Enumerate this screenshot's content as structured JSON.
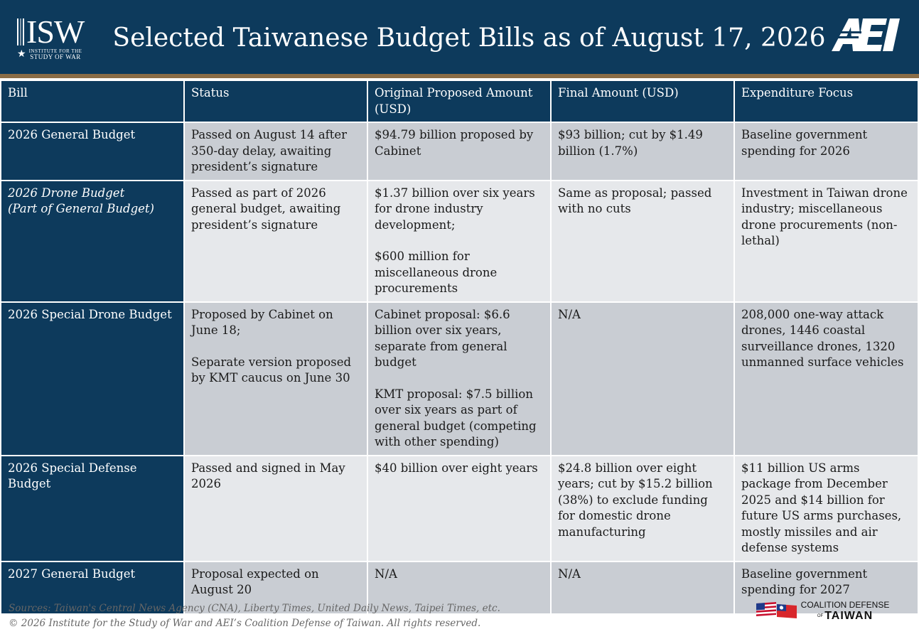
{
  "header": {
    "title": "Selected Taiwanese Budget Bills as of August 17, 2026",
    "isw_logo": {
      "mark": "ISW",
      "line1": "INSTITUTE FOR THE",
      "line2": "STUDY OF WAR"
    },
    "aei_logo": "AEI"
  },
  "table": {
    "columns": [
      "Bill",
      "Status",
      "Original Proposed Amount (USD)",
      "Final Amount (USD)",
      "Expenditure Focus"
    ],
    "rows": [
      {
        "bill": [
          "2026 General Budget"
        ],
        "status": [
          "Passed on August 14 after 350-day delay, awaiting president’s signature"
        ],
        "original": [
          "$94.79 billion proposed by Cabinet"
        ],
        "final": [
          "$93 billion; cut by $1.49 billion (1.7%)"
        ],
        "focus": [
          "Baseline government spending for 2026"
        ]
      },
      {
        "bill": [
          "2026 Drone Budget",
          "(Part of General Budget)"
        ],
        "status": [
          "Passed as part of 2026 general budget, awaiting president’s signature"
        ],
        "original": [
          "$1.37 billion over six years for drone industry development;",
          "$600 million for miscellaneous drone procurements"
        ],
        "final": [
          "Same as proposal; passed with no cuts"
        ],
        "focus": [
          "Investment in Taiwan drone industry; miscellaneous drone procurements (non-lethal)"
        ]
      },
      {
        "bill": [
          "2026 Special Drone Budget"
        ],
        "status": [
          "Proposed by Cabinet on June 18;",
          "Separate version proposed by KMT caucus on June 30"
        ],
        "original": [
          "Cabinet proposal: $6.6 billion over six years, separate from general budget",
          "KMT proposal: $7.5 billion over six years as part of general budget (competing with other spending)"
        ],
        "final": [
          "N/A"
        ],
        "focus": [
          "208,000 one-way attack drones, 1446 coastal surveillance drones, 1320 unmanned surface vehicles"
        ]
      },
      {
        "bill": [
          "2026 Special Defense Budget"
        ],
        "status": [
          "Passed and signed in May 2026"
        ],
        "original": [
          "$40 billion over eight years"
        ],
        "final": [
          "$24.8 billion over eight years; cut by $15.2 billion (38%) to exclude funding for domestic drone manufacturing"
        ],
        "focus": [
          "$11 billion US arms package from December 2025 and $14 billion for future US arms purchases, mostly missiles and air defense systems"
        ]
      },
      {
        "bill": [
          "2027 General Budget"
        ],
        "status": [
          "Proposal expected on August 20"
        ],
        "original": [
          "N/A"
        ],
        "final": [
          "N/A"
        ],
        "focus": [
          "Baseline government spending for 2027"
        ]
      }
    ]
  },
  "footer": {
    "sources": "Sources: Taiwan's Central News Agency (CNA), Liberty Times, United Daily News, Taipei Times, etc.",
    "copyright": "© 2026 Institute for the Study of War and AEI’s Coalition Defense of Taiwan. All rights reserved.",
    "cdt_logo": {
      "line1": "COALITION DEFENSE",
      "of": "OF",
      "line2": "TAIWAN"
    }
  },
  "colors": {
    "navy": "#0d3a5c",
    "bronze_rule": "#8a6d47",
    "row_gray": "#c9cdd3",
    "row_light": "#e6e8eb"
  }
}
